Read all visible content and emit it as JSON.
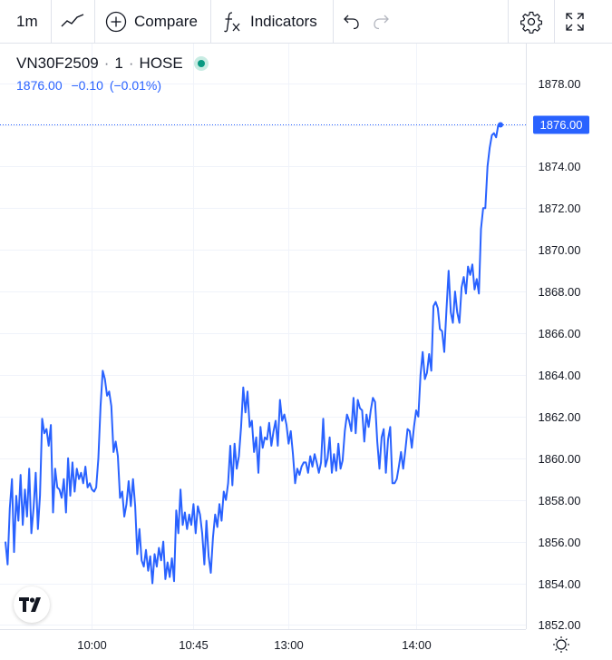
{
  "toolbar": {
    "interval": "1m",
    "compare_label": "Compare",
    "indicators_label": "Indicators",
    "icons": [
      "line-chart-icon",
      "plus-circle-icon",
      "fx-icon",
      "undo-icon",
      "redo-icon",
      "gear-icon",
      "fullscreen-icon"
    ]
  },
  "legend": {
    "symbol": "VN30F2509",
    "interval": "1",
    "exchange": "HOSE",
    "sep": "·",
    "price": "1876.00",
    "change": "−0.10",
    "change_pct": "(−0.01%)",
    "status_color": "#089981"
  },
  "colors": {
    "line": "#2962ff",
    "grid": "#f0f3fa",
    "axis_text": "#131722"
  },
  "chart_data": {
    "type": "line",
    "title": "",
    "xlabel": "",
    "ylabel": "",
    "ylim": [
      1851.8,
      1879.9
    ],
    "y_ticks": [
      "1878.00",
      "1876.00",
      "1874.00",
      "1872.00",
      "1870.00",
      "1868.00",
      "1866.00",
      "1864.00",
      "1862.00",
      "1860.00",
      "1858.00",
      "1856.00",
      "1854.00",
      "1852.00"
    ],
    "x_ticks": [
      "10:00",
      "10:45",
      "13:00",
      "14:00"
    ],
    "last_price_label": "1876.00",
    "grid": true,
    "series": [
      {
        "values": [
          1856.0,
          1854.9,
          1857.6,
          1859.0,
          1855.5,
          1858.2,
          1857.0,
          1859.2,
          1856.8,
          1858.5,
          1857.2,
          1859.5,
          1856.4,
          1857.6,
          1859.3,
          1856.6,
          1858.2,
          1861.9,
          1861.2,
          1861.4,
          1860.6,
          1861.6,
          1857.4,
          1859.5,
          1858.6,
          1858.5,
          1858.1,
          1859.0,
          1857.4,
          1860.0,
          1858.2,
          1859.8,
          1858.4,
          1859.5,
          1859.0,
          1859.3,
          1858.8,
          1859.6,
          1858.6,
          1858.8,
          1858.5,
          1858.4,
          1858.6,
          1860.0,
          1862.5,
          1864.2,
          1863.8,
          1863.0,
          1863.2,
          1862.5,
          1860.3,
          1860.8,
          1860.1,
          1858.1,
          1858.4,
          1857.2,
          1857.8,
          1858.9,
          1857.7,
          1859.0,
          1857.7,
          1855.4,
          1856.6,
          1855.1,
          1854.8,
          1855.6,
          1854.6,
          1855.3,
          1854.0,
          1855.4,
          1854.8,
          1855.7,
          1855.1,
          1856.0,
          1854.2,
          1855.0,
          1854.3,
          1855.2,
          1854.1,
          1857.5,
          1856.4,
          1858.5,
          1856.8,
          1857.4,
          1856.6,
          1857.3,
          1856.8,
          1857.8,
          1856.4,
          1857.7,
          1857.3,
          1856.4,
          1854.9,
          1857.0,
          1855.3,
          1854.5,
          1856.2,
          1857.3,
          1856.7,
          1857.8,
          1857.0,
          1858.4,
          1858.0,
          1858.8,
          1860.6,
          1858.7,
          1860.7,
          1859.5,
          1860.1,
          1861.5,
          1863.4,
          1862.2,
          1863.2,
          1861.5,
          1861.8,
          1860.3,
          1861.0,
          1859.3,
          1861.5,
          1860.5,
          1861.0,
          1860.9,
          1861.7,
          1860.6,
          1861.3,
          1861.8,
          1860.6,
          1862.8,
          1861.8,
          1862.1,
          1861.6,
          1860.7,
          1861.3,
          1860.2,
          1858.8,
          1859.5,
          1859.2,
          1859.6,
          1859.8,
          1859.8,
          1859.3,
          1860.1,
          1859.6,
          1860.2,
          1859.8,
          1859.3,
          1859.8,
          1861.9,
          1859.6,
          1860.0,
          1861.0,
          1859.3,
          1860.2,
          1859.4,
          1860.7,
          1859.5,
          1859.9,
          1861.3,
          1862.1,
          1861.8,
          1861.3,
          1862.9,
          1861.2,
          1862.8,
          1862.4,
          1862.3,
          1860.8,
          1862.1,
          1861.5,
          1862.3,
          1862.9,
          1862.7,
          1860.8,
          1859.5,
          1861.0,
          1861.4,
          1859.3,
          1860.9,
          1861.5,
          1858.8,
          1858.8,
          1859.0,
          1859.6,
          1860.3,
          1859.5,
          1860.4,
          1861.4,
          1861.3,
          1860.5,
          1861.5,
          1862.3,
          1862.0,
          1864.0,
          1865.1,
          1863.8,
          1864.1,
          1865.0,
          1864.2,
          1867.3,
          1867.5,
          1867.2,
          1866.2,
          1866.1,
          1865.1,
          1867.1,
          1869.0,
          1867.0,
          1866.5,
          1868.0,
          1867.0,
          1866.5,
          1868.2,
          1868.7,
          1867.9,
          1869.2,
          1868.8,
          1869.3,
          1868.1,
          1868.6,
          1867.9,
          1871.0,
          1872.0,
          1872.0,
          1874.0,
          1874.9,
          1875.5,
          1875.6,
          1875.4,
          1876.0,
          1876.0
        ]
      }
    ]
  }
}
